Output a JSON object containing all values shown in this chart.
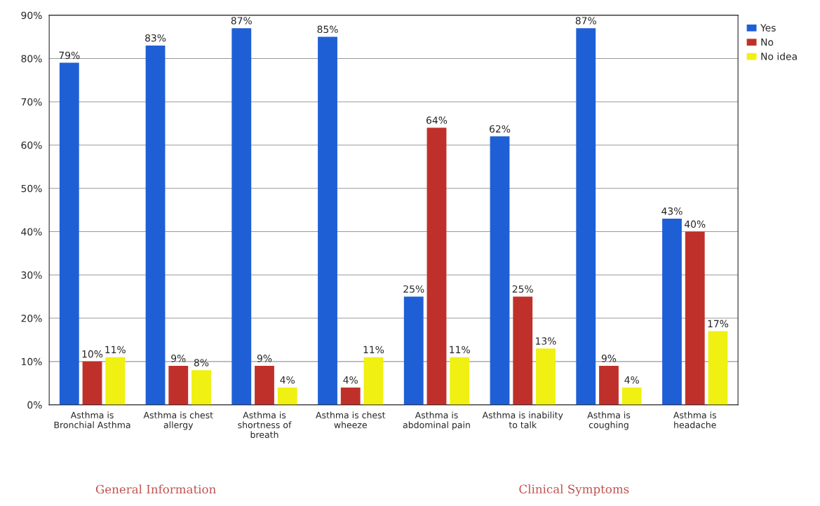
{
  "chart_data": {
    "type": "bar",
    "categories": [
      "Asthma is\nBronchial Asthma",
      "Asthma is chest\nallergy",
      "Asthma is\nshortness of\nbreath",
      "Asthma is chest\nwheeze",
      "Asthma is\nabdominal pain",
      "Asthma is inability\nto talk",
      "Asthma is\ncoughing",
      "Asthma is\nheadache"
    ],
    "series": [
      {
        "name": "Yes",
        "color": "#1f5fd6",
        "values": [
          79,
          83,
          87,
          85,
          25,
          62,
          87,
          43
        ],
        "value_labels": [
          "79%",
          "83%",
          "87%",
          "85%",
          "25%",
          "62%",
          "87%",
          "43%"
        ]
      },
      {
        "name": "No",
        "color": "#c0302a",
        "values": [
          10,
          9,
          9,
          4,
          64,
          25,
          9,
          40
        ],
        "value_labels": [
          "10%",
          "9%",
          "9%",
          "4%",
          "64%",
          "25%",
          "9%",
          "40%"
        ]
      },
      {
        "name": "No idea",
        "color": "#f0f012",
        "values": [
          11,
          8,
          4,
          11,
          11,
          13,
          4,
          17
        ],
        "value_labels": [
          "11%",
          "8%",
          "4%",
          "11%",
          "11%",
          "13%",
          "4%",
          "17%"
        ]
      }
    ],
    "ylim": [
      0,
      90
    ],
    "yticks": [
      {
        "value": 0,
        "label": "0%"
      },
      {
        "value": 10,
        "label": "10%"
      },
      {
        "value": 20,
        "label": "20%"
      },
      {
        "value": 30,
        "label": "30%"
      },
      {
        "value": 40,
        "label": "40%"
      },
      {
        "value": 50,
        "label": "50%"
      },
      {
        "value": 60,
        "label": "60%"
      },
      {
        "value": 70,
        "label": "70%"
      },
      {
        "value": 80,
        "label": "80%"
      },
      {
        "value": 90,
        "label": "90%"
      }
    ],
    "grid": "y",
    "legend": "top right",
    "annotations": [
      "General Information",
      "Clinical Symptoms"
    ]
  }
}
